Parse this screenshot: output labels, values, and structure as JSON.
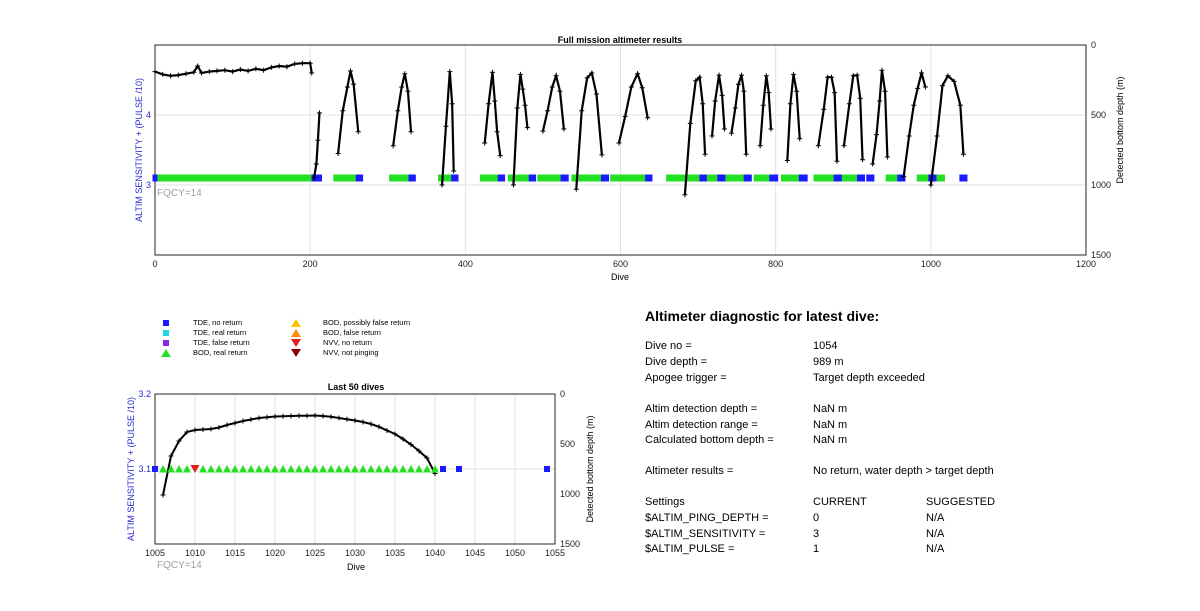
{
  "top_chart": {
    "title": "Full mission altimeter results",
    "xlabel": "Dive",
    "ylabel_left": "ALTIM SENSITIVITY + (PULSE /10)",
    "ylabel_right": "Detected bottom depth (m)",
    "annotation": "FQCY=14",
    "x_ticks": [
      "0",
      "200",
      "400",
      "600",
      "800",
      "1000",
      "1200"
    ],
    "y_left_ticks": [
      "3",
      "4"
    ],
    "y_right_ticks": [
      "0",
      "500",
      "1000",
      "1500"
    ]
  },
  "bottom_chart": {
    "title": "Last 50 dives",
    "xlabel": "Dive",
    "ylabel_left": "ALTIM SENSITIVITY + (PULSE /10)",
    "ylabel_right": "Detected bottom depth (m)",
    "annotation": "FQCY=14",
    "x_ticks": [
      "1005",
      "1010",
      "1015",
      "1020",
      "1025",
      "1030",
      "1035",
      "1040",
      "1045",
      "1050",
      "1055"
    ],
    "y_left_ticks": [
      "3.1",
      "3.2"
    ],
    "y_right_ticks": [
      "0",
      "500",
      "1000",
      "1500"
    ]
  },
  "legend": {
    "items": [
      {
        "label": "TDE, no return",
        "color": "#1a1aff",
        "shape": "square"
      },
      {
        "label": "TDE, real return",
        "color": "#22d3e6",
        "shape": "square"
      },
      {
        "label": "TDE, false return",
        "color": "#8a2be2",
        "shape": "square"
      },
      {
        "label": "BOD, real return",
        "color": "#22e022",
        "shape": "triangle-up"
      },
      {
        "label": "BOD, possibly false return",
        "color": "#ffc400",
        "shape": "triangle-up"
      },
      {
        "label": "BOD, false return",
        "color": "#ff8c00",
        "shape": "triangle-up"
      },
      {
        "label": "NVV, no return",
        "color": "#e02020",
        "shape": "triangle-down"
      },
      {
        "label": "NVV, not pinging",
        "color": "#8b0000",
        "shape": "triangle-down"
      }
    ]
  },
  "diagnostic": {
    "title": "Altimeter diagnostic for latest dive:",
    "rows": [
      {
        "label": "Dive no =",
        "value": "1054"
      },
      {
        "label": "Dive depth =",
        "value": "989 m"
      },
      {
        "label": "Apogee trigger =",
        "value": "Target depth exceeded"
      },
      {
        "label": "Altim detection depth =",
        "value": "NaN m"
      },
      {
        "label": "Altim detection range =",
        "value": "NaN m"
      },
      {
        "label": "Calculated bottom depth =",
        "value": "NaN m"
      },
      {
        "label": "Altimeter results =",
        "value": "No return, water depth > target depth"
      }
    ],
    "settings": {
      "header": {
        "label": "Settings",
        "current": "CURRENT",
        "suggested": "SUGGESTED"
      },
      "rows": [
        {
          "label": "$ALTIM_PING_DEPTH =",
          "current": "0",
          "suggested": "N/A"
        },
        {
          "label": "$ALTIM_SENSITIVITY =",
          "current": "3",
          "suggested": "N/A"
        },
        {
          "label": "$ALTIM_PULSE =",
          "current": "1",
          "suggested": "N/A"
        }
      ]
    }
  },
  "chart_data": [
    {
      "type": "scatter",
      "title": "Full mission altimeter results",
      "xlabel": "Dive",
      "ylabel": "ALTIM SENSITIVITY + (PULSE /10)",
      "ylabel_right": "Detected bottom depth (m)",
      "xlim": [
        0,
        1200
      ],
      "ylim_left": [
        2,
        5
      ],
      "ylim_right_reversed": [
        1500,
        0
      ],
      "grid": true,
      "sensitivity_series": [
        {
          "name": "BOD, real return",
          "y": 3.1,
          "ranges": [
            [
              1,
              200
            ],
            [
              233,
              262
            ],
            [
              305,
              330
            ],
            [
              368,
              385
            ],
            [
              422,
              445
            ],
            [
              458,
              485
            ],
            [
              496,
              526
            ],
            [
              540,
              578
            ],
            [
              590,
              635
            ],
            [
              662,
              705
            ],
            [
              712,
              728
            ],
            [
              737,
              762
            ],
            [
              775,
              795
            ],
            [
              810,
              833
            ],
            [
              852,
              878
            ],
            [
              882,
              908
            ],
            [
              945,
              960
            ],
            [
              985,
              1015
            ]
          ]
        },
        {
          "name": "TDE, no return",
          "y": 3.1,
          "ranges": [
            [
              0,
              0
            ],
            [
              205,
              212
            ],
            [
              262,
              265
            ],
            [
              330,
              333
            ],
            [
              385,
              388
            ],
            [
              445,
              448
            ],
            [
              485,
              488
            ],
            [
              526,
              530
            ],
            [
              578,
              582
            ],
            [
              635,
              638
            ],
            [
              705,
              708
            ],
            [
              728,
              732
            ],
            [
              762,
              766
            ],
            [
              795,
              800
            ],
            [
              833,
              838
            ],
            [
              878,
              882
            ],
            [
              908,
              912
            ],
            [
              920,
              924
            ],
            [
              960,
              964
            ],
            [
              1000,
              1004
            ],
            [
              1040,
              1044
            ]
          ]
        }
      ],
      "bottom_depth_segments": [
        {
          "x": [
            0,
            10,
            20,
            30,
            40,
            50,
            55,
            60,
            70,
            80,
            90,
            100,
            110,
            120,
            130,
            140,
            150,
            160,
            170,
            180,
            190,
            200,
            202
          ],
          "y": [
            190,
            210,
            220,
            215,
            205,
            195,
            150,
            200,
            190,
            185,
            180,
            190,
            175,
            185,
            170,
            180,
            160,
            150,
            155,
            135,
            130,
            130,
            200
          ]
        },
        {
          "x": [
            205,
            208,
            210,
            212
          ],
          "y": [
            950,
            850,
            680,
            485
          ]
        },
        {
          "x": [
            236,
            242,
            248,
            252,
            256,
            262
          ],
          "y": [
            775,
            470,
            300,
            185,
            280,
            620
          ]
        },
        {
          "x": [
            307,
            313,
            318,
            322,
            326,
            330
          ],
          "y": [
            720,
            470,
            300,
            205,
            330,
            620
          ]
        },
        {
          "x": [
            370,
            375,
            380,
            383,
            385
          ],
          "y": [
            1000,
            580,
            190,
            420,
            900
          ]
        },
        {
          "x": [
            425,
            430,
            435,
            438,
            441,
            445
          ],
          "y": [
            700,
            420,
            195,
            400,
            620,
            790
          ]
        },
        {
          "x": [
            462,
            467,
            471,
            474,
            477,
            480
          ],
          "y": [
            1000,
            450,
            210,
            315,
            430,
            590
          ]
        },
        {
          "x": [
            500,
            506,
            512,
            517,
            522,
            527
          ],
          "y": [
            615,
            470,
            300,
            220,
            330,
            600
          ]
        },
        {
          "x": [
            543,
            550,
            557,
            563,
            569,
            576
          ],
          "y": [
            1030,
            470,
            235,
            200,
            350,
            785
          ]
        },
        {
          "x": [
            598,
            606,
            614,
            622,
            628,
            635
          ],
          "y": [
            700,
            510,
            300,
            205,
            305,
            520
          ]
        },
        {
          "x": [
            683,
            690,
            697,
            702,
            706,
            709
          ],
          "y": [
            1070,
            560,
            255,
            230,
            420,
            780
          ]
        },
        {
          "x": [
            718,
            722,
            727,
            731,
            734
          ],
          "y": [
            650,
            400,
            215,
            360,
            600
          ]
        },
        {
          "x": [
            743,
            748,
            752,
            756,
            759,
            762
          ],
          "y": [
            630,
            450,
            280,
            215,
            330,
            780
          ]
        },
        {
          "x": [
            780,
            784,
            788,
            791,
            794
          ],
          "y": [
            720,
            430,
            220,
            340,
            600
          ]
        },
        {
          "x": [
            815,
            819,
            823,
            827,
            831
          ],
          "y": [
            825,
            420,
            210,
            330,
            670
          ]
        },
        {
          "x": [
            855,
            862,
            867,
            872,
            876,
            879
          ],
          "y": [
            720,
            460,
            230,
            230,
            340,
            830
          ]
        },
        {
          "x": [
            888,
            895,
            900,
            905,
            909,
            912
          ],
          "y": [
            720,
            420,
            220,
            215,
            380,
            820
          ]
        },
        {
          "x": [
            925,
            930,
            934,
            937,
            941,
            944
          ],
          "y": [
            850,
            640,
            400,
            180,
            330,
            800
          ]
        },
        {
          "x": [
            965,
            972,
            978,
            983,
            988,
            993
          ],
          "y": [
            940,
            650,
            430,
            310,
            200,
            300
          ]
        },
        {
          "x": [
            1000,
            1008,
            1015,
            1022,
            1030,
            1038,
            1042
          ],
          "y": [
            1000,
            650,
            290,
            220,
            260,
            430,
            780
          ]
        }
      ]
    },
    {
      "type": "scatter",
      "title": "Last 50 dives",
      "xlabel": "Dive",
      "ylabel": "ALTIM SENSITIVITY + (PULSE /10)",
      "ylabel_right": "Detected bottom depth (m)",
      "xlim": [
        1005,
        1055
      ],
      "ylim_left": [
        3.0,
        3.2
      ],
      "ylim_right_reversed": [
        1500,
        0
      ],
      "grid": true,
      "markers": [
        {
          "name": "TDE, no return",
          "x": [
            1005,
            1041,
            1043,
            1054
          ],
          "y": 3.1
        },
        {
          "name": "BOD, real return",
          "x": [
            1006,
            1007,
            1008,
            1009,
            1011,
            1012,
            1013,
            1014,
            1015,
            1016,
            1017,
            1018,
            1019,
            1020,
            1021,
            1022,
            1023,
            1024,
            1025,
            1026,
            1027,
            1028,
            1029,
            1030,
            1031,
            1032,
            1033,
            1034,
            1035,
            1036,
            1037,
            1038,
            1039,
            1040
          ],
          "y": 3.1
        },
        {
          "name": "NVV, no return",
          "x": [
            1010
          ],
          "y": 3.1
        }
      ],
      "bottom_depth": {
        "x": [
          1006,
          1007,
          1008,
          1009,
          1010,
          1011,
          1012,
          1013,
          1014,
          1015,
          1016,
          1017,
          1018,
          1019,
          1020,
          1021,
          1022,
          1023,
          1024,
          1025,
          1026,
          1027,
          1028,
          1029,
          1030,
          1031,
          1032,
          1033,
          1034,
          1035,
          1036,
          1037,
          1038,
          1039,
          1040
        ],
        "y": [
          1010,
          620,
          470,
          380,
          360,
          355,
          350,
          335,
          310,
          290,
          270,
          255,
          240,
          232,
          225,
          222,
          220,
          218,
          218,
          215,
          220,
          228,
          240,
          252,
          265,
          280,
          300,
          328,
          365,
          400,
          450,
          505,
          570,
          640,
          795
        ]
      }
    }
  ]
}
